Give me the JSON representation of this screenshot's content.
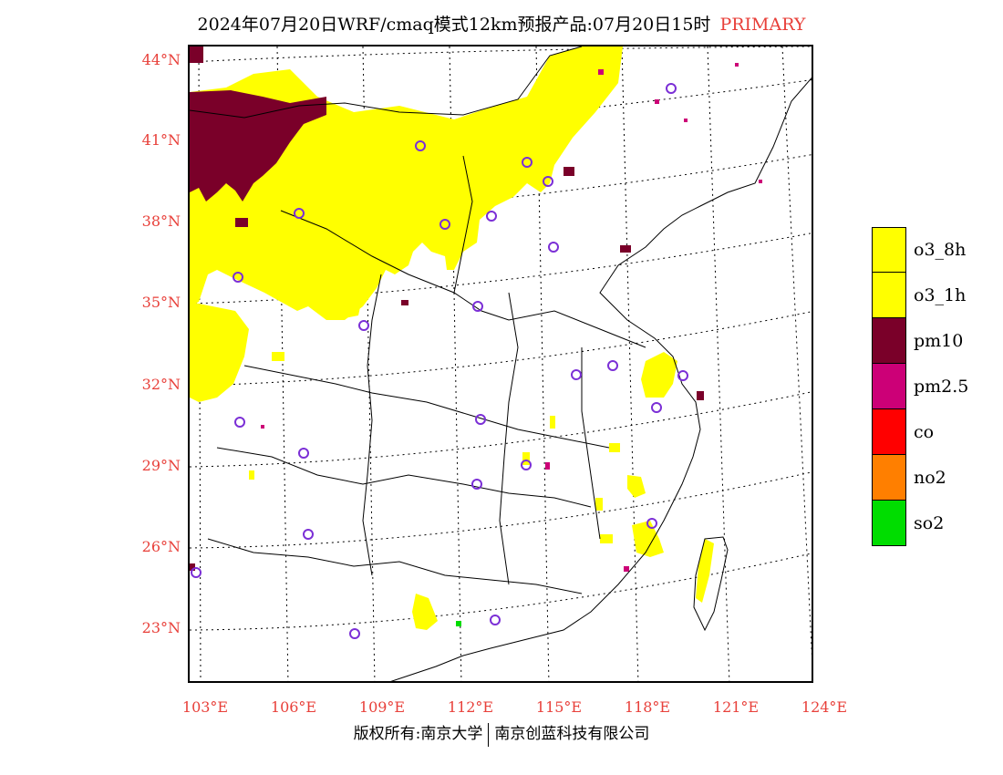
{
  "title": {
    "text": "2024年07月20日WRF/cmaq模式12km预报产品:07月20日15时",
    "tag": "PRIMARY"
  },
  "map": {
    "lat_labels": [
      "44°N",
      "41°N",
      "38°N",
      "35°N",
      "32°N",
      "29°N",
      "26°N",
      "23°N"
    ],
    "lon_labels": [
      "103°E",
      "106°E",
      "109°E",
      "112°E",
      "115°E",
      "118°E",
      "121°E",
      "124°E"
    ]
  },
  "legend": [
    {
      "label": "o3_8h",
      "color": "#ffff00"
    },
    {
      "label": "o3_1h",
      "color": "#ffff00"
    },
    {
      "label": "pm10",
      "color": "#7a0029"
    },
    {
      "label": "pm2.5",
      "color": "#cc0077"
    },
    {
      "label": "co",
      "color": "#ff0000"
    },
    {
      "label": "no2",
      "color": "#ff7f00"
    },
    {
      "label": "so2",
      "color": "#00dd00"
    }
  ],
  "footer": {
    "left": "版权所有:南京大学",
    "right": "南京创蓝科技有限公司"
  },
  "colors": {
    "label_red": "#e8403a",
    "ozone_yellow": "#ffff00",
    "pm10_maroon": "#7a0029",
    "pm25_magenta": "#cc0077",
    "so2_green": "#00dd00",
    "city_marker": "#7b2fd6"
  }
}
